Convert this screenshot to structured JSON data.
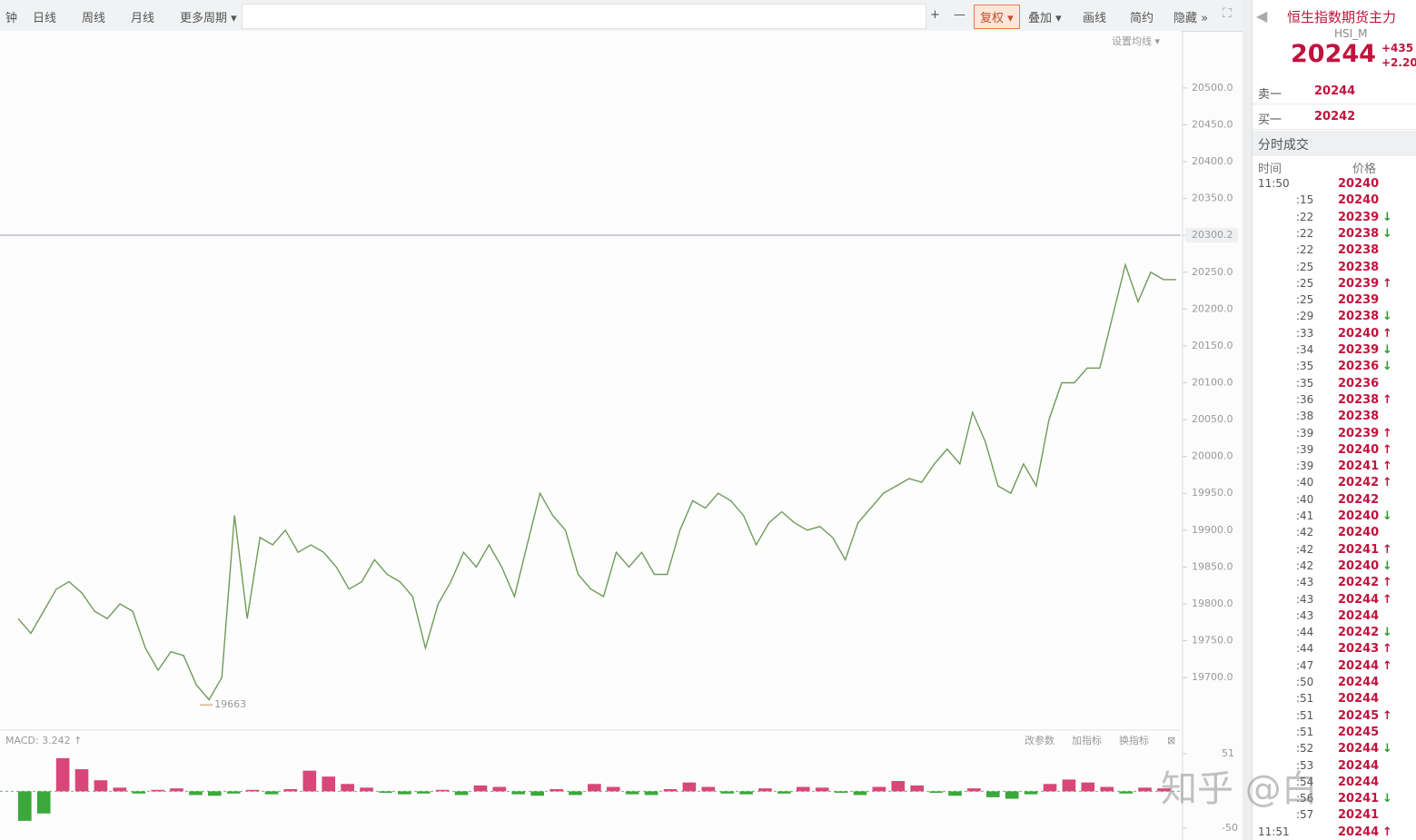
{
  "toolbar": {
    "left": [
      "钟",
      "日线",
      "周线",
      "月线",
      "更多周期 ▾"
    ],
    "right": [
      "+",
      "—",
      "复权 ▾",
      "叠加 ▾",
      "画线",
      "简约",
      "隐藏 »"
    ]
  },
  "chart_data": {
    "type": "line",
    "ma_button": "设置均线 ▾",
    "series": [
      {
        "name": "HSI",
        "color": "#6f9a5a",
        "values": [
          19780,
          19760,
          19790,
          19820,
          19830,
          19815,
          19790,
          19780,
          19800,
          19790,
          19740,
          19710,
          19735,
          19730,
          19690,
          19670,
          19700,
          19920,
          19780,
          19890,
          19880,
          19900,
          19870,
          19880,
          19870,
          19850,
          19820,
          19830,
          19860,
          19840,
          19830,
          19810,
          19740,
          19800,
          19830,
          19870,
          19850,
          19880,
          19850,
          19810,
          19880,
          19950,
          19920,
          19900,
          19840,
          19820,
          19810,
          19870,
          19850,
          19870,
          19840,
          19840,
          19900,
          19940,
          19930,
          19950,
          19940,
          19920,
          19880,
          19910,
          19925,
          19910,
          19900,
          19905,
          19890,
          19860,
          19910,
          19930,
          19950,
          19960,
          19970,
          19965,
          19990,
          20010,
          19990,
          20060,
          20020,
          19960,
          19950,
          19990,
          19960,
          20050,
          20100,
          20100,
          20120,
          20120,
          20190,
          20260,
          20210,
          20250,
          20240,
          20240
        ]
      }
    ],
    "ylim": [
      19625,
      20575
    ],
    "yticks": [
      {
        "value": 19700,
        "label": "19700.0"
      },
      {
        "value": 19750,
        "label": "19750.0"
      },
      {
        "value": 19800,
        "label": "19800.0"
      },
      {
        "value": 19850,
        "label": "19850.0"
      },
      {
        "value": 19900,
        "label": "19900.0"
      },
      {
        "value": 19950,
        "label": "19950.0"
      },
      {
        "value": 20000,
        "label": "20000.0"
      },
      {
        "value": 20050,
        "label": "20050.0"
      },
      {
        "value": 20100,
        "label": "20100.0"
      },
      {
        "value": 20150,
        "label": "20150.0"
      },
      {
        "value": 20200,
        "label": "20200.0"
      },
      {
        "value": 20250,
        "label": "20250.0"
      },
      {
        "value": 20300,
        "label": "20300.0"
      },
      {
        "value": 20350,
        "label": "20350.0"
      },
      {
        "value": 20400,
        "label": "20400.0"
      },
      {
        "value": 20450,
        "label": "20450.0"
      },
      {
        "value": 20500,
        "label": "20500.0"
      }
    ],
    "ref_line": {
      "value": 20300.2,
      "label": "20300.2"
    },
    "low_label": {
      "index": 15,
      "value": 19663,
      "label": "19663"
    }
  },
  "macd": {
    "label": "MACD: 3.242 ↑",
    "buttons": [
      "改参数",
      "加指标",
      "换指标"
    ],
    "ylim": [
      -50,
      51
    ],
    "yticks": [
      51,
      -50
    ],
    "up_color": "#d9467a",
    "down_color": "#3aa83a",
    "values": [
      -40,
      -30,
      45,
      30,
      15,
      5,
      -3,
      2,
      4,
      -5,
      -6,
      -3,
      2,
      -4,
      3,
      28,
      20,
      10,
      5,
      -2,
      -4,
      -3,
      2,
      -5,
      8,
      6,
      -4,
      -6,
      3,
      -5,
      10,
      6,
      -4,
      -5,
      3,
      12,
      6,
      -3,
      -4,
      4,
      -3,
      6,
      5,
      -2,
      -5,
      6,
      14,
      8,
      -2,
      -6,
      4,
      -8,
      -10,
      -4,
      10,
      16,
      12,
      6,
      -3,
      5,
      4
    ]
  },
  "quote": {
    "title": "恒生指数期货主力",
    "symbol": "HSI_M",
    "price": 20244,
    "change": "+435",
    "change_pct": "+2.20",
    "book": [
      {
        "label": "卖一",
        "value": 20244
      },
      {
        "label": "买一",
        "value": 20242
      }
    ]
  },
  "trades": {
    "title": "分时成交",
    "headers": [
      "时间",
      "价格"
    ],
    "rows": [
      {
        "time": "11:50",
        "price": 20240
      },
      {
        "time": ":15",
        "price": 20240
      },
      {
        "time": ":22",
        "price": 20239,
        "arrow": "↓"
      },
      {
        "time": ":22",
        "price": 20238,
        "arrow": "↓"
      },
      {
        "time": ":22",
        "price": 20238
      },
      {
        "time": ":25",
        "price": 20238
      },
      {
        "time": ":25",
        "price": 20239,
        "arrow": "↑"
      },
      {
        "time": ":25",
        "price": 20239
      },
      {
        "time": ":29",
        "price": 20238,
        "arrow": "↓"
      },
      {
        "time": ":33",
        "price": 20240,
        "arrow": "↑"
      },
      {
        "time": ":34",
        "price": 20239,
        "arrow": "↓"
      },
      {
        "time": ":35",
        "price": 20236,
        "arrow": "↓"
      },
      {
        "time": ":35",
        "price": 20236
      },
      {
        "time": ":36",
        "price": 20238,
        "arrow": "↑"
      },
      {
        "time": ":38",
        "price": 20238
      },
      {
        "time": ":39",
        "price": 20239,
        "arrow": "↑"
      },
      {
        "time": ":39",
        "price": 20240,
        "arrow": "↑"
      },
      {
        "time": ":39",
        "price": 20241,
        "arrow": "↑"
      },
      {
        "time": ":40",
        "price": 20242,
        "arrow": "↑"
      },
      {
        "time": ":40",
        "price": 20242
      },
      {
        "time": ":41",
        "price": 20240,
        "arrow": "↓"
      },
      {
        "time": ":42",
        "price": 20240
      },
      {
        "time": ":42",
        "price": 20241,
        "arrow": "↑"
      },
      {
        "time": ":42",
        "price": 20240,
        "arrow": "↓"
      },
      {
        "time": ":43",
        "price": 20242,
        "arrow": "↑"
      },
      {
        "time": ":43",
        "price": 20244,
        "arrow": "↑"
      },
      {
        "time": ":43",
        "price": 20244
      },
      {
        "time": ":44",
        "price": 20242,
        "arrow": "↓"
      },
      {
        "time": ":44",
        "price": 20243,
        "arrow": "↑"
      },
      {
        "time": ":47",
        "price": 20244,
        "arrow": "↑"
      },
      {
        "time": ":50",
        "price": 20244
      },
      {
        "time": ":51",
        "price": 20244
      },
      {
        "time": ":51",
        "price": 20245,
        "arrow": "↑"
      },
      {
        "time": ":51",
        "price": 20245
      },
      {
        "time": ":52",
        "price": 20244,
        "arrow": "↓"
      },
      {
        "time": ":53",
        "price": 20244
      },
      {
        "time": ":54",
        "price": 20244
      },
      {
        "time": ":56",
        "price": 20241,
        "arrow": "↓"
      },
      {
        "time": ":57",
        "price": 20241
      },
      {
        "time": "11:51",
        "price": 20244,
        "arrow": "↑"
      }
    ]
  },
  "watermark": "知乎 @白"
}
